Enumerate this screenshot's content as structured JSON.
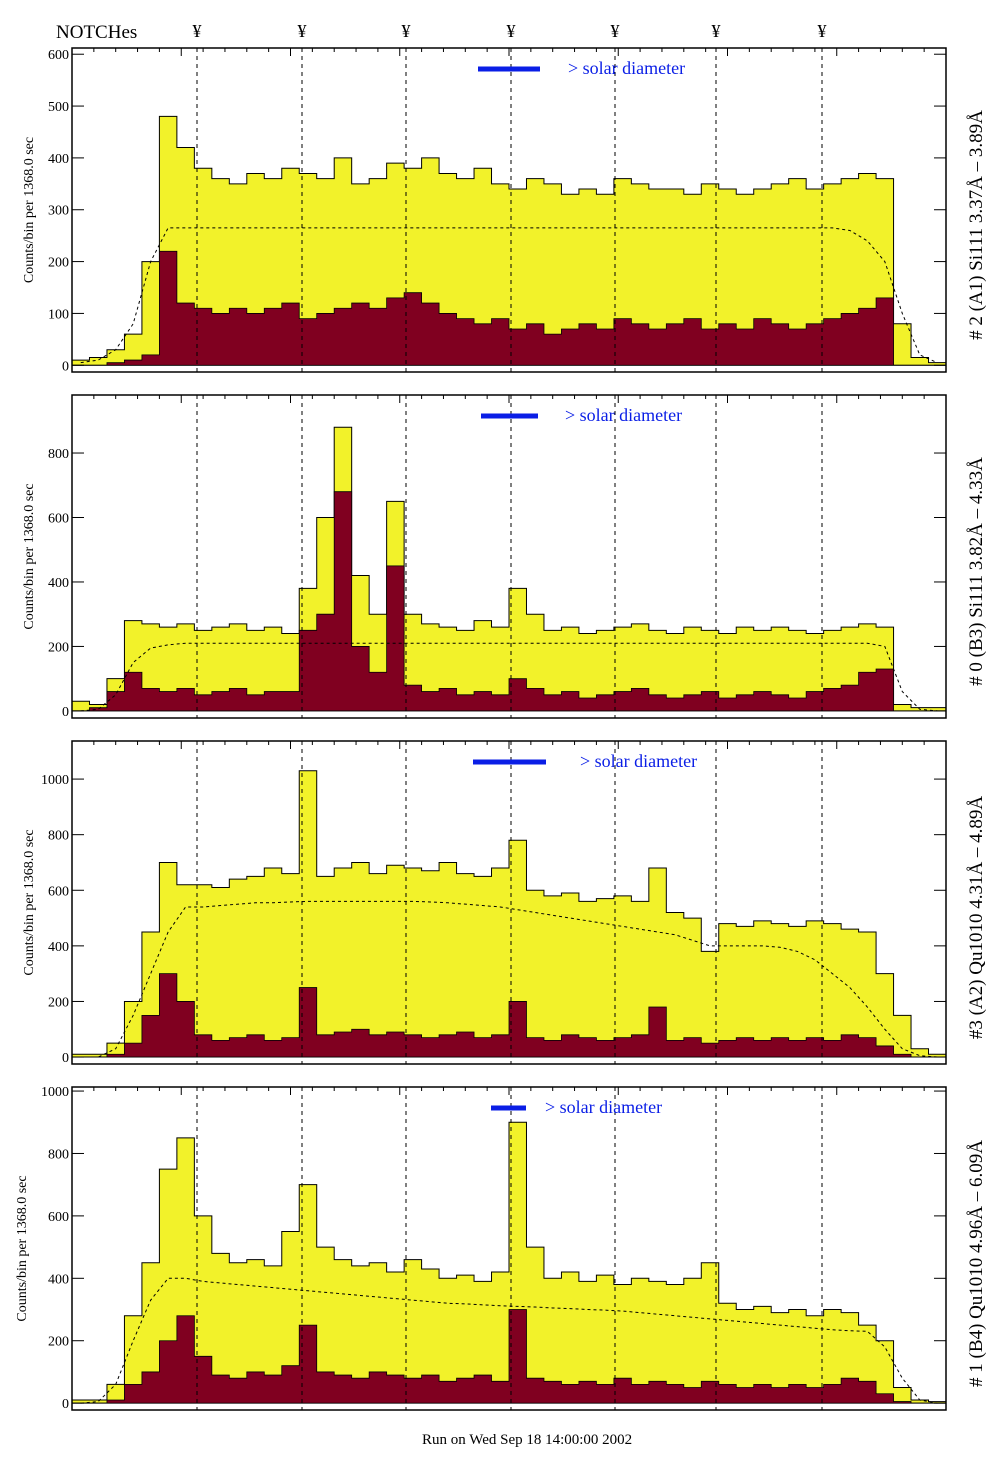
{
  "header": {
    "notches_label": "NOTCHes",
    "notch_symbol": "¥"
  },
  "footer": "Run on Wed Sep 18 14:00:00 2002",
  "colors": {
    "total": "#f2f22a",
    "component": "#800020",
    "legend": "#0a1ee6"
  },
  "chart_data": [
    {
      "type": "bar",
      "title": "# 2 (A1) Si111  3.37Å – 3.89Å",
      "ylabel": "Counts/bin per   1368.0 sec",
      "legend": "> solar diameter",
      "ylim": [
        -13,
        612
      ],
      "yticks": [
        0,
        100,
        200,
        300,
        400,
        500,
        600
      ],
      "total": [
        10,
        15,
        30,
        60,
        200,
        480,
        420,
        380,
        360,
        350,
        370,
        360,
        380,
        370,
        360,
        400,
        350,
        360,
        390,
        380,
        400,
        370,
        360,
        380,
        350,
        340,
        360,
        350,
        330,
        340,
        330,
        360,
        350,
        340,
        340,
        330,
        350,
        340,
        330,
        340,
        350,
        360,
        340,
        350,
        360,
        370,
        360,
        80,
        15,
        5
      ],
      "component": [
        0,
        0,
        5,
        10,
        20,
        220,
        120,
        110,
        100,
        110,
        100,
        110,
        120,
        90,
        100,
        110,
        120,
        110,
        130,
        140,
        120,
        100,
        90,
        80,
        90,
        70,
        80,
        60,
        70,
        80,
        70,
        90,
        80,
        70,
        80,
        90,
        70,
        80,
        70,
        90,
        80,
        70,
        80,
        90,
        100,
        110,
        130,
        0,
        0,
        0
      ],
      "model": [
        5,
        10,
        30,
        80,
        200,
        265,
        265,
        265,
        265,
        265,
        265,
        265,
        265,
        265,
        265,
        265,
        265,
        265,
        265,
        265,
        265,
        265,
        265,
        265,
        265,
        265,
        265,
        265,
        265,
        265,
        265,
        265,
        265,
        265,
        265,
        265,
        265,
        265,
        265,
        265,
        265,
        265,
        265,
        265,
        260,
        240,
        200,
        100,
        20,
        5
      ]
    },
    {
      "type": "bar",
      "title": "# 0 (B3) Si111  3.82Å – 4.33Å",
      "ylabel": "Counts/bin per   1368.0 sec",
      "legend": "> solar diameter",
      "ylim": [
        -22,
        980
      ],
      "yticks": [
        0,
        200,
        400,
        600,
        800
      ],
      "total": [
        30,
        20,
        100,
        280,
        270,
        260,
        270,
        250,
        260,
        270,
        250,
        260,
        240,
        380,
        600,
        880,
        420,
        300,
        650,
        300,
        270,
        260,
        250,
        280,
        260,
        380,
        300,
        250,
        260,
        240,
        250,
        260,
        270,
        250,
        240,
        260,
        250,
        240,
        260,
        250,
        260,
        250,
        240,
        250,
        260,
        270,
        260,
        20,
        10,
        10
      ],
      "component": [
        0,
        10,
        60,
        120,
        70,
        60,
        70,
        50,
        60,
        70,
        50,
        60,
        60,
        250,
        300,
        680,
        200,
        120,
        450,
        80,
        60,
        70,
        50,
        60,
        50,
        100,
        70,
        50,
        60,
        40,
        50,
        60,
        70,
        50,
        40,
        50,
        60,
        40,
        50,
        60,
        50,
        40,
        60,
        70,
        80,
        120,
        130,
        0,
        0,
        0
      ],
      "model": [
        0,
        5,
        50,
        150,
        195,
        205,
        210,
        210,
        210,
        210,
        210,
        210,
        210,
        210,
        210,
        210,
        210,
        210,
        210,
        210,
        210,
        210,
        210,
        210,
        210,
        210,
        210,
        210,
        210,
        210,
        210,
        210,
        210,
        210,
        210,
        210,
        210,
        210,
        210,
        210,
        210,
        210,
        210,
        210,
        210,
        210,
        200,
        60,
        5,
        0
      ]
    },
    {
      "type": "bar",
      "title": "#3 (A2) Qu1010  4.31Å – 4.89Å",
      "ylabel": "Counts/bin per   1368.0 sec",
      "legend": "> solar diameter",
      "ylim": [
        -25,
        1137
      ],
      "yticks": [
        0,
        200,
        400,
        600,
        800,
        1000
      ],
      "total": [
        10,
        10,
        50,
        200,
        450,
        700,
        620,
        620,
        610,
        640,
        650,
        680,
        660,
        1030,
        650,
        680,
        700,
        660,
        690,
        680,
        670,
        700,
        660,
        650,
        680,
        780,
        600,
        580,
        590,
        560,
        570,
        580,
        560,
        680,
        520,
        500,
        380,
        480,
        470,
        490,
        480,
        470,
        490,
        480,
        460,
        450,
        300,
        150,
        30,
        10
      ],
      "component": [
        0,
        0,
        10,
        50,
        150,
        300,
        200,
        80,
        60,
        70,
        80,
        60,
        70,
        250,
        80,
        90,
        100,
        80,
        90,
        80,
        70,
        80,
        90,
        70,
        80,
        200,
        70,
        60,
        80,
        70,
        60,
        70,
        80,
        180,
        60,
        70,
        50,
        60,
        70,
        60,
        70,
        60,
        70,
        60,
        80,
        70,
        40,
        10,
        0,
        0
      ],
      "model": [
        0,
        0,
        30,
        150,
        300,
        450,
        540,
        540,
        545,
        550,
        555,
        555,
        558,
        560,
        560,
        560,
        560,
        560,
        560,
        560,
        558,
        555,
        550,
        545,
        540,
        530,
        520,
        510,
        500,
        490,
        480,
        470,
        460,
        450,
        440,
        420,
        400,
        400,
        400,
        400,
        395,
        380,
        350,
        300,
        250,
        180,
        100,
        30,
        5,
        0
      ]
    },
    {
      "type": "bar",
      "title": "# 1 (B4) Qu1010 4.96Å – 6.09Å",
      "ylabel": "Counts/bin per   1368.0 sec",
      "legend": "> solar diameter",
      "ylim": [
        -22,
        1013
      ],
      "yticks": [
        0,
        200,
        400,
        600,
        800,
        1000
      ],
      "total": [
        10,
        10,
        60,
        280,
        450,
        750,
        850,
        600,
        480,
        450,
        460,
        440,
        550,
        700,
        500,
        460,
        440,
        450,
        420,
        460,
        430,
        400,
        410,
        390,
        420,
        900,
        500,
        400,
        420,
        390,
        410,
        380,
        400,
        390,
        380,
        400,
        450,
        320,
        300,
        310,
        290,
        300,
        280,
        300,
        290,
        250,
        200,
        50,
        10,
        5
      ],
      "component": [
        0,
        0,
        10,
        60,
        100,
        200,
        280,
        150,
        90,
        80,
        100,
        90,
        120,
        250,
        100,
        90,
        80,
        100,
        90,
        80,
        90,
        70,
        80,
        90,
        70,
        300,
        80,
        70,
        60,
        70,
        60,
        80,
        60,
        70,
        60,
        50,
        70,
        60,
        50,
        60,
        50,
        60,
        50,
        60,
        80,
        70,
        30,
        5,
        0,
        0
      ],
      "model": [
        0,
        5,
        60,
        200,
        330,
        400,
        400,
        390,
        385,
        380,
        375,
        370,
        365,
        360,
        355,
        350,
        345,
        340,
        335,
        330,
        325,
        320,
        318,
        315,
        312,
        310,
        308,
        305,
        303,
        300,
        298,
        295,
        290,
        285,
        280,
        275,
        270,
        265,
        260,
        255,
        250,
        245,
        240,
        235,
        232,
        230,
        180,
        80,
        10,
        0
      ]
    }
  ]
}
